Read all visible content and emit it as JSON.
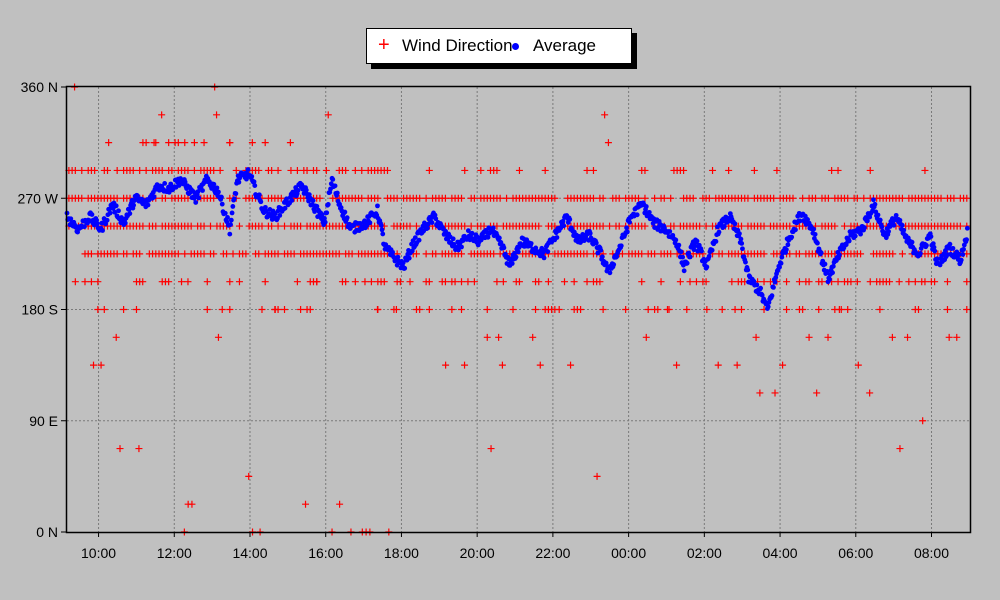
{
  "chart_data": {
    "type": "scatter",
    "legend": {
      "position": "top-center",
      "entries": [
        "Wind Direction",
        "Average"
      ]
    },
    "x_axis": {
      "unit": "time",
      "range": [
        "09:10",
        "09:00 (+1 day)"
      ],
      "tick_labels": [
        "10:00",
        "12:00",
        "14:00",
        "16:00",
        "18:00",
        "20:00",
        "22:00",
        "00:00",
        "02:00",
        "04:00",
        "06:00",
        "08:00"
      ]
    },
    "y_axis": {
      "range": [
        0,
        360
      ],
      "ticks": [
        0,
        90,
        180,
        270,
        360
      ],
      "tick_labels": [
        "0 N",
        "90 E",
        "180 S",
        "270 W",
        "360 N"
      ]
    },
    "grid": true,
    "colors": {
      "wind_direction": "#ff0000",
      "average": "#0000ff",
      "plot_background": "#c0c0c0",
      "grid": "#7a7a7a"
    },
    "series": [
      {
        "name": "Wind Direction",
        "marker": "plus",
        "levels": [
          225,
          247.5,
          270,
          292.5
        ],
        "level_ranges_hours": [
          [
            0,
            23.8
          ]
        ],
        "outliers": [
          {
            "h": 0.2,
            "d": 360
          },
          {
            "h": 0.7,
            "d": 135
          },
          {
            "h": 0.9,
            "d": 135
          },
          {
            "h": 1.1,
            "d": 315
          },
          {
            "h": 1.3,
            "d": 157.5
          },
          {
            "h": 1.4,
            "d": 67.5
          },
          {
            "h": 1.9,
            "d": 67.5
          },
          {
            "h": 2.0,
            "d": 202.5
          },
          {
            "h": 2.3,
            "d": 315
          },
          {
            "h": 2.5,
            "d": 337.5
          },
          {
            "h": 3.1,
            "d": 0
          },
          {
            "h": 3.2,
            "d": 22.5
          },
          {
            "h": 3.3,
            "d": 22.5
          },
          {
            "h": 3.9,
            "d": 360
          },
          {
            "h": 3.95,
            "d": 337.5
          },
          {
            "h": 4.0,
            "d": 157.5
          },
          {
            "h": 4.1,
            "d": 180
          },
          {
            "h": 4.3,
            "d": 315
          },
          {
            "h": 4.8,
            "d": 45
          },
          {
            "h": 4.9,
            "d": 0
          },
          {
            "h": 5.1,
            "d": 0
          },
          {
            "h": 5.5,
            "d": 180
          },
          {
            "h": 5.9,
            "d": 315
          },
          {
            "h": 6.3,
            "d": 22.5
          },
          {
            "h": 6.6,
            "d": 202.5
          },
          {
            "h": 6.9,
            "d": 337.5
          },
          {
            "h": 7.0,
            "d": 0
          },
          {
            "h": 7.2,
            "d": 22.5
          },
          {
            "h": 7.5,
            "d": 0
          },
          {
            "h": 7.8,
            "d": 0
          },
          {
            "h": 7.9,
            "d": 0
          },
          {
            "h": 8.0,
            "d": 0
          },
          {
            "h": 8.5,
            "d": 0
          },
          {
            "h": 8.2,
            "d": 180
          },
          {
            "h": 8.7,
            "d": 180
          },
          {
            "h": 10.0,
            "d": 135
          },
          {
            "h": 10.5,
            "d": 135
          },
          {
            "h": 11.1,
            "d": 157.5
          },
          {
            "h": 11.2,
            "d": 67.5
          },
          {
            "h": 11.4,
            "d": 157.5
          },
          {
            "h": 11.5,
            "d": 135
          },
          {
            "h": 12.3,
            "d": 157.5
          },
          {
            "h": 12.5,
            "d": 135
          },
          {
            "h": 13.0,
            "d": 180
          },
          {
            "h": 13.3,
            "d": 135
          },
          {
            "h": 14.0,
            "d": 45
          },
          {
            "h": 14.2,
            "d": 337.5
          },
          {
            "h": 14.3,
            "d": 315
          },
          {
            "h": 15.3,
            "d": 157.5
          },
          {
            "h": 15.9,
            "d": 180
          },
          {
            "h": 16.1,
            "d": 135
          },
          {
            "h": 16.9,
            "d": 180
          },
          {
            "h": 17.2,
            "d": 135
          },
          {
            "h": 17.7,
            "d": 135
          },
          {
            "h": 18.2,
            "d": 157.5
          },
          {
            "h": 18.3,
            "d": 112.5
          },
          {
            "h": 18.7,
            "d": 112.5
          },
          {
            "h": 18.9,
            "d": 135
          },
          {
            "h": 19.6,
            "d": 157.5
          },
          {
            "h": 19.8,
            "d": 112.5
          },
          {
            "h": 20.1,
            "d": 157.5
          },
          {
            "h": 20.4,
            "d": 180
          },
          {
            "h": 20.9,
            "d": 135
          },
          {
            "h": 21.2,
            "d": 112.5
          },
          {
            "h": 21.8,
            "d": 157.5
          },
          {
            "h": 22.0,
            "d": 67.5
          },
          {
            "h": 22.2,
            "d": 157.5
          },
          {
            "h": 22.6,
            "d": 90
          },
          {
            "h": 23.3,
            "d": 157.5
          },
          {
            "h": 23.5,
            "d": 157.5
          }
        ]
      },
      {
        "name": "Average",
        "marker": "dot",
        "anchors": [
          [
            0,
            255
          ],
          [
            0.3,
            245
          ],
          [
            0.6,
            255
          ],
          [
            0.9,
            245
          ],
          [
            1.2,
            265
          ],
          [
            1.5,
            250
          ],
          [
            1.8,
            270
          ],
          [
            2.1,
            265
          ],
          [
            2.4,
            280
          ],
          [
            2.7,
            278
          ],
          [
            3.0,
            285
          ],
          [
            3.4,
            270
          ],
          [
            3.7,
            285
          ],
          [
            4.0,
            275
          ],
          [
            4.3,
            245
          ],
          [
            4.5,
            285
          ],
          [
            4.8,
            290
          ],
          [
            5.2,
            260
          ],
          [
            5.5,
            255
          ],
          [
            5.9,
            270
          ],
          [
            6.2,
            280
          ],
          [
            6.5,
            265
          ],
          [
            6.8,
            250
          ],
          [
            7.0,
            285
          ],
          [
            7.2,
            265
          ],
          [
            7.5,
            245
          ],
          [
            7.9,
            250
          ],
          [
            8.2,
            260
          ],
          [
            8.4,
            230
          ],
          [
            8.7,
            220
          ],
          [
            8.9,
            215
          ],
          [
            9.1,
            230
          ],
          [
            9.4,
            245
          ],
          [
            9.7,
            255
          ],
          [
            10.0,
            240
          ],
          [
            10.3,
            230
          ],
          [
            10.6,
            240
          ],
          [
            10.9,
            235
          ],
          [
            11.2,
            245
          ],
          [
            11.5,
            230
          ],
          [
            11.7,
            215
          ],
          [
            12.0,
            235
          ],
          [
            12.3,
            230
          ],
          [
            12.6,
            225
          ],
          [
            12.9,
            240
          ],
          [
            13.2,
            255
          ],
          [
            13.5,
            235
          ],
          [
            13.8,
            240
          ],
          [
            14.1,
            225
          ],
          [
            14.3,
            210
          ],
          [
            14.6,
            230
          ],
          [
            14.9,
            255
          ],
          [
            15.2,
            265
          ],
          [
            15.5,
            250
          ],
          [
            15.8,
            245
          ],
          [
            16.1,
            235
          ],
          [
            16.3,
            215
          ],
          [
            16.6,
            235
          ],
          [
            16.9,
            215
          ],
          [
            17.2,
            245
          ],
          [
            17.5,
            255
          ],
          [
            17.8,
            235
          ],
          [
            18.0,
            205
          ],
          [
            18.3,
            195
          ],
          [
            18.5,
            180
          ],
          [
            18.8,
            215
          ],
          [
            19.1,
            240
          ],
          [
            19.4,
            258
          ],
          [
            19.7,
            245
          ],
          [
            19.9,
            225
          ],
          [
            20.1,
            205
          ],
          [
            20.4,
            225
          ],
          [
            20.7,
            240
          ],
          [
            21.0,
            245
          ],
          [
            21.3,
            265
          ],
          [
            21.6,
            240
          ],
          [
            21.9,
            255
          ],
          [
            22.2,
            235
          ],
          [
            22.5,
            225
          ],
          [
            22.8,
            240
          ],
          [
            23.0,
            215
          ],
          [
            23.3,
            230
          ],
          [
            23.6,
            220
          ],
          [
            23.8,
            245
          ]
        ]
      }
    ]
  }
}
